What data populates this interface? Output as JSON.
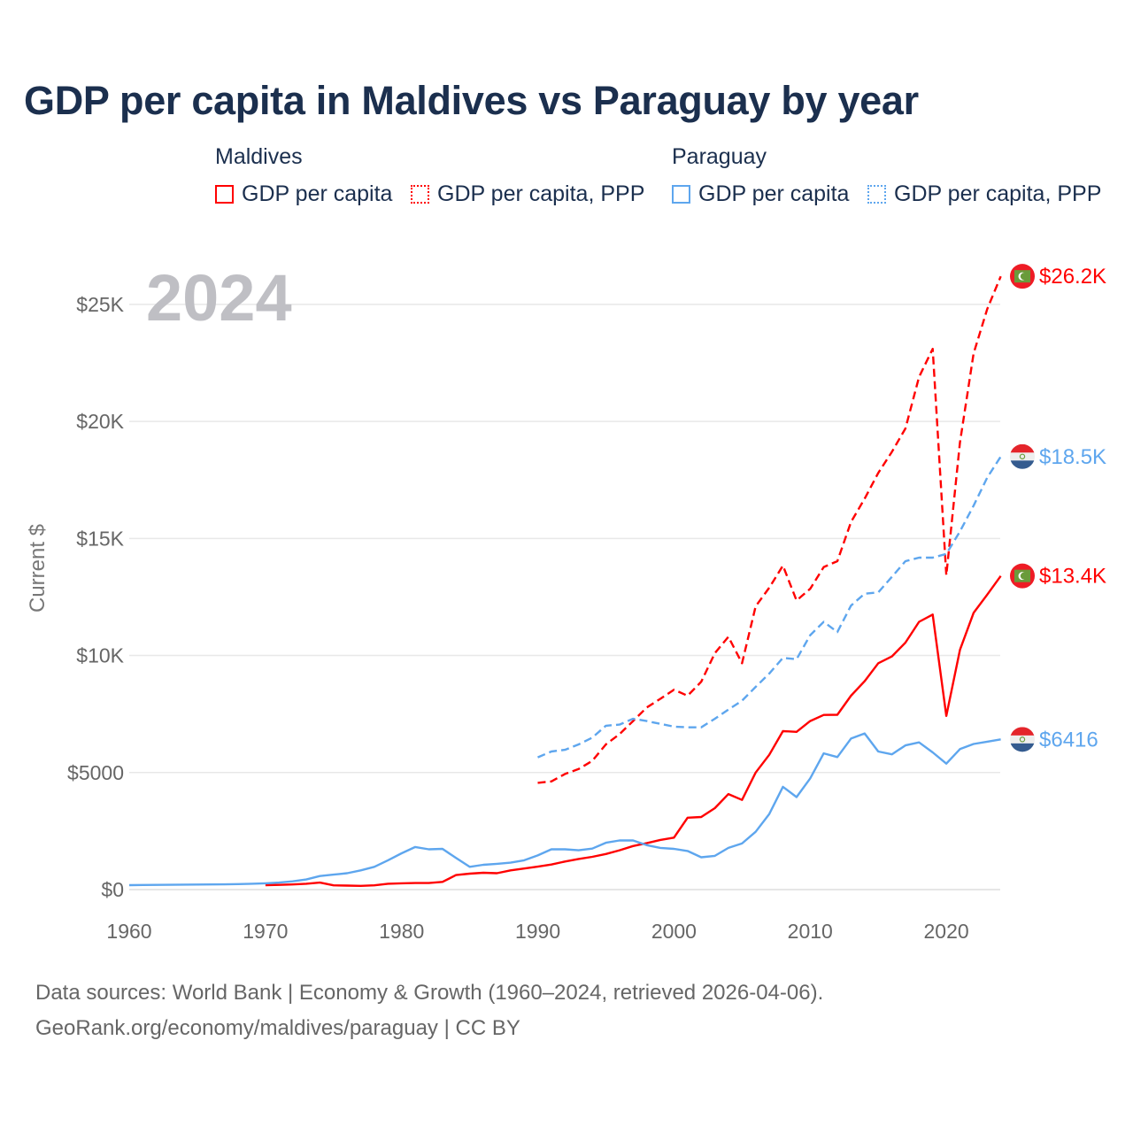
{
  "title": "GDP per capita in Maldives vs Paraguay by year",
  "legend": {
    "groups": [
      {
        "name": "Maldives",
        "color": "#ff0000",
        "items": [
          "GDP per capita",
          "GDP per capita, PPP"
        ]
      },
      {
        "name": "Paraguay",
        "color": "#5ea6ee",
        "items": [
          "GDP per capita",
          "GDP per capita, PPP"
        ]
      }
    ]
  },
  "year_watermark": "2024",
  "footer": {
    "line1": "Data sources: World Bank | Economy & Growth (1960–2024, retrieved 2026-04-06).",
    "line2": "GeoRank.org/economy/maldives/paraguay | CC BY"
  },
  "chart_data": {
    "type": "line",
    "title": "GDP per capita in Maldives vs Paraguay by year",
    "xlabel": "",
    "ylabel": "Current $",
    "xlim": [
      1960,
      2024
    ],
    "ylim": [
      0,
      27000
    ],
    "xticks": [
      1960,
      1970,
      1980,
      1990,
      2000,
      2010,
      2020
    ],
    "xtick_labels": [
      "1960",
      "1970",
      "1980",
      "1990",
      "2000",
      "2010",
      "2020"
    ],
    "yticks": [
      0,
      5000,
      10000,
      15000,
      20000,
      25000
    ],
    "ytick_labels": [
      "$0",
      "$5000",
      "$10K",
      "$15K",
      "$20K",
      "$25K"
    ],
    "grid": true,
    "legend_position": "top",
    "series": [
      {
        "name": "Maldives GDP per capita",
        "color": "#ff0000",
        "dash": "solid",
        "end_label": "$13.4K",
        "flag": "maldives",
        "start": 1970,
        "values": [
          190,
          200,
          220,
          250,
          300,
          180,
          170,
          160,
          180,
          250,
          270,
          280,
          280,
          330,
          620,
          680,
          720,
          700,
          820,
          900,
          980,
          1070,
          1200,
          1310,
          1400,
          1520,
          1680,
          1860,
          1980,
          2120,
          2220,
          3070,
          3100,
          3480,
          4080,
          3830,
          5000,
          5760,
          6770,
          6740,
          7200,
          7460,
          7470,
          8280,
          8900,
          9670,
          9960,
          10550,
          11440,
          11750,
          7420,
          10240,
          11820,
          12600,
          13400
        ]
      },
      {
        "name": "Maldives GDP per capita, PPP",
        "color": "#ff0000",
        "dash": "dashed",
        "end_label": "$26.2K",
        "flag": "maldives",
        "start": 1990,
        "values": [
          4560,
          4620,
          4940,
          5150,
          5500,
          6200,
          6640,
          7200,
          7780,
          8150,
          8540,
          8280,
          8880,
          10100,
          10800,
          9670,
          12100,
          12900,
          13840,
          12350,
          12850,
          13780,
          14030,
          15700,
          16700,
          17800,
          18700,
          19700,
          21900,
          23100,
          13430,
          19100,
          22900,
          24800,
          26200
        ]
      },
      {
        "name": "Paraguay GDP per capita",
        "color": "#5ea6ee",
        "dash": "solid",
        "end_label": "$6416",
        "flag": "paraguay",
        "start": 1960,
        "values": [
          190,
          195,
          200,
          205,
          210,
          215,
          220,
          225,
          235,
          250,
          270,
          300,
          350,
          430,
          580,
          640,
          700,
          820,
          970,
          1250,
          1550,
          1820,
          1720,
          1740,
          1350,
          970,
          1060,
          1100,
          1150,
          1250,
          1460,
          1720,
          1720,
          1680,
          1750,
          2000,
          2100,
          2100,
          1900,
          1780,
          1740,
          1650,
          1380,
          1440,
          1780,
          1970,
          2470,
          3230,
          4390,
          3950,
          4750,
          5820,
          5660,
          6450,
          6670,
          5900,
          5780,
          6160,
          6290,
          5860,
          5380,
          6000,
          6220,
          6320,
          6416
        ]
      },
      {
        "name": "Paraguay GDP per capita, PPP",
        "color": "#5ea6ee",
        "dash": "dashed",
        "end_label": "$18.5K",
        "flag": "paraguay",
        "start": 1990,
        "values": [
          5650,
          5900,
          5970,
          6200,
          6490,
          7000,
          7050,
          7300,
          7200,
          7080,
          6960,
          6930,
          6930,
          7300,
          7690,
          8070,
          8660,
          9230,
          9900,
          9840,
          10870,
          11440,
          11000,
          12130,
          12640,
          12700,
          13360,
          14030,
          14180,
          14180,
          14340,
          15300,
          16400,
          17600,
          18500
        ]
      }
    ]
  }
}
